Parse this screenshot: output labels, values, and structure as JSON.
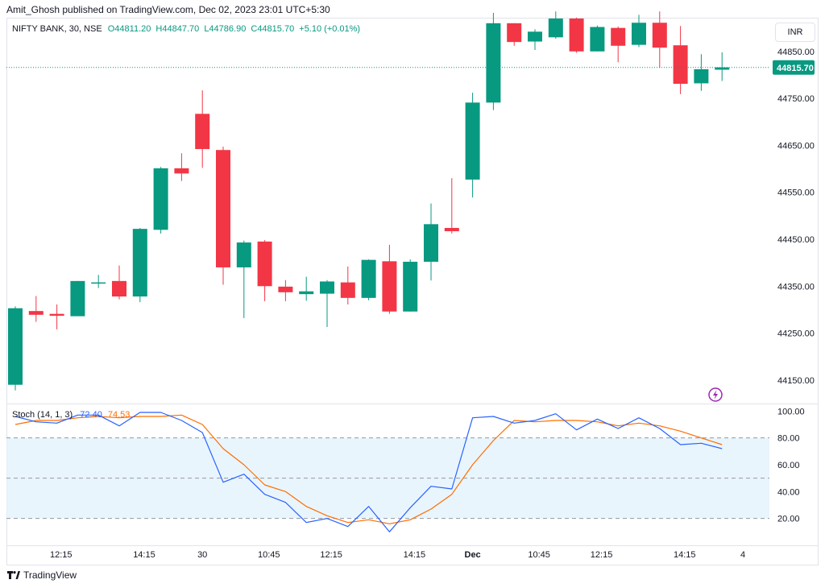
{
  "header": {
    "publisher": "Amit_Ghosh published on TradingView.com, Dec 02, 2023 23:01 UTC+5:30"
  },
  "legend": {
    "symbol": "NIFTY BANK, 30, NSE",
    "open": "O44811.20",
    "high": "H44847.70",
    "low": "L44786.90",
    "close": "C44815.70",
    "change": "+5.10 (+0.01%)"
  },
  "currency": "INR",
  "stoch_legend": {
    "name": "Stoch (14, 1, 3)",
    "k": "72.40",
    "d": "74.53"
  },
  "brand": "TradingView",
  "colors": {
    "up": "#089981",
    "down": "#f23645",
    "k_line": "#2962ff",
    "d_line": "#ff6d00",
    "band_fill": "#e3f2fd",
    "last_price_label": "#089981"
  },
  "icons": [
    "lightning-icon",
    "tradingview-logo-icon"
  ],
  "chart_data": [
    {
      "type": "candlestick",
      "title": "NIFTY BANK, 30, NSE",
      "ylim": [
        44100,
        44920
      ],
      "y_ticks": [
        "44850.00",
        "44750.00",
        "44650.00",
        "44550.00",
        "44450.00",
        "44350.00",
        "44250.00",
        "44150.00"
      ],
      "y_tick_values": [
        44850,
        44750,
        44650,
        44550,
        44450,
        44350,
        44250,
        44150
      ],
      "last_price": 44815.7,
      "last_price_label": "44815.70",
      "x_labels": [
        "12:15",
        "14:15",
        "30",
        "10:45",
        "12:15",
        "14:15",
        "Dec",
        "10:45",
        "12:15",
        "14:15",
        "4"
      ],
      "x_label_index": [
        2.2,
        6.2,
        9,
        12.2,
        15.2,
        19.2,
        22,
        25.2,
        28.2,
        32.2,
        35
      ],
      "candles": [
        {
          "o": 44140,
          "h": 44307,
          "l": 44128,
          "c": 44303
        },
        {
          "o": 44297,
          "h": 44329,
          "l": 44274,
          "c": 44289
        },
        {
          "o": 44291,
          "h": 44311,
          "l": 44258,
          "c": 44287
        },
        {
          "o": 44286,
          "h": 44361,
          "l": 44286,
          "c": 44361
        },
        {
          "o": 44357,
          "h": 44374,
          "l": 44346,
          "c": 44358
        },
        {
          "o": 44361,
          "h": 44394,
          "l": 44322,
          "c": 44328
        },
        {
          "o": 44328,
          "h": 44474,
          "l": 44316,
          "c": 44472
        },
        {
          "o": 44470,
          "h": 44604,
          "l": 44462,
          "c": 44601
        },
        {
          "o": 44601,
          "h": 44633,
          "l": 44574,
          "c": 44590
        },
        {
          "o": 44717,
          "h": 44767,
          "l": 44602,
          "c": 44642
        },
        {
          "o": 44640,
          "h": 44647,
          "l": 44353,
          "c": 44390
        },
        {
          "o": 44390,
          "h": 44447,
          "l": 44282,
          "c": 44443
        },
        {
          "o": 44445,
          "h": 44448,
          "l": 44318,
          "c": 44350
        },
        {
          "o": 44349,
          "h": 44363,
          "l": 44318,
          "c": 44337
        },
        {
          "o": 44333,
          "h": 44370,
          "l": 44319,
          "c": 44339
        },
        {
          "o": 44334,
          "h": 44363,
          "l": 44263,
          "c": 44360
        },
        {
          "o": 44358,
          "h": 44392,
          "l": 44311,
          "c": 44325
        },
        {
          "o": 44325,
          "h": 44407,
          "l": 44320,
          "c": 44406
        },
        {
          "o": 44403,
          "h": 44438,
          "l": 44291,
          "c": 44296
        },
        {
          "o": 44296,
          "h": 44407,
          "l": 44296,
          "c": 44402
        },
        {
          "o": 44402,
          "h": 44526,
          "l": 44362,
          "c": 44482
        },
        {
          "o": 44474,
          "h": 44580,
          "l": 44462,
          "c": 44467
        },
        {
          "o": 44577,
          "h": 44762,
          "l": 44539,
          "c": 44741
        },
        {
          "o": 44741,
          "h": 44932,
          "l": 44725,
          "c": 44910
        },
        {
          "o": 44910,
          "h": 44910,
          "l": 44862,
          "c": 44870
        },
        {
          "o": 44871,
          "h": 44897,
          "l": 44853,
          "c": 44892
        },
        {
          "o": 44880,
          "h": 44935,
          "l": 44877,
          "c": 44920
        },
        {
          "o": 44920,
          "h": 44922,
          "l": 44847,
          "c": 44850
        },
        {
          "o": 44850,
          "h": 44905,
          "l": 44850,
          "c": 44902
        },
        {
          "o": 44900,
          "h": 44903,
          "l": 44827,
          "c": 44862
        },
        {
          "o": 44864,
          "h": 44928,
          "l": 44859,
          "c": 44911
        },
        {
          "o": 44911,
          "h": 44935,
          "l": 44815,
          "c": 44858
        },
        {
          "o": 44863,
          "h": 44904,
          "l": 44759,
          "c": 44781
        },
        {
          "o": 44782,
          "h": 44844,
          "l": 44766,
          "c": 44812
        },
        {
          "o": 44811,
          "h": 44848,
          "l": 44787,
          "c": 44816
        }
      ]
    },
    {
      "type": "line",
      "title": "Stoch (14, 1, 3)",
      "ylim": [
        0,
        105
      ],
      "y_ticks": [
        "100.00",
        "80.00",
        "60.00",
        "40.00",
        "20.00"
      ],
      "y_tick_values": [
        100,
        80,
        60,
        40,
        20
      ],
      "band": [
        20,
        80
      ],
      "middle_line": 50,
      "series": [
        {
          "name": "K",
          "values": [
            96,
            92,
            91,
            97,
            97,
            89,
            99,
            99,
            93,
            84,
            47,
            53,
            38,
            32,
            17,
            20,
            14,
            29,
            10,
            28,
            44,
            42,
            95,
            96,
            91,
            93,
            98,
            86,
            94,
            87,
            95,
            87,
            75,
            76,
            72
          ]
        },
        {
          "name": "D",
          "values": [
            90,
            93,
            93,
            95,
            96,
            95,
            96,
            96,
            97,
            90,
            72,
            60,
            45,
            40,
            29,
            22,
            17,
            19,
            16,
            19,
            27,
            38,
            60,
            78,
            93,
            92,
            93,
            93,
            92,
            89,
            91,
            89,
            85,
            80,
            75
          ]
        }
      ]
    }
  ]
}
